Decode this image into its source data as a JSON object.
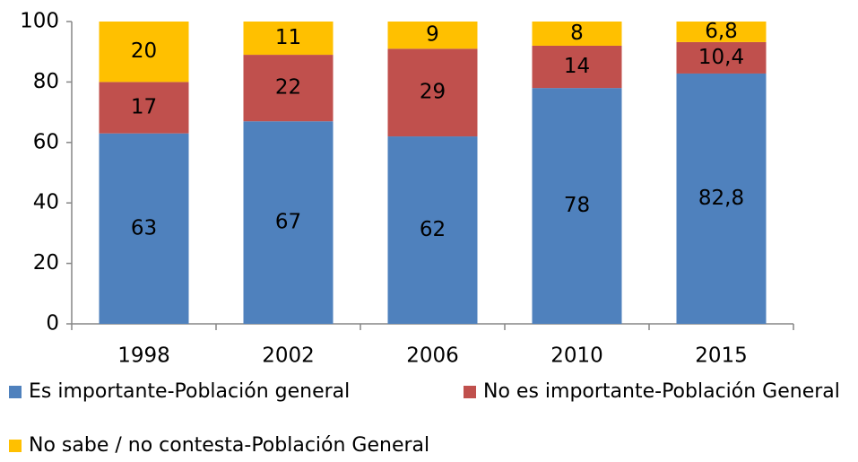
{
  "chart_data": {
    "type": "stacked_bar",
    "categories": [
      "1998",
      "2002",
      "2006",
      "2010",
      "2015"
    ],
    "series": [
      {
        "name": "Es importante-Población general",
        "color": "#4f81bd",
        "values": [
          63,
          67,
          62,
          78,
          82.8
        ],
        "value_labels": [
          "63",
          "67",
          "62",
          "78",
          "82,8"
        ]
      },
      {
        "name": "No es importante-Población General",
        "color": "#c0504d",
        "values": [
          17,
          22,
          29,
          14,
          10.4
        ],
        "value_labels": [
          "17",
          "22",
          "29",
          "14",
          "10,4"
        ]
      },
      {
        "name": "No sabe / no contesta-Población General",
        "color": "#ffc000",
        "values": [
          20,
          11,
          9,
          8,
          6.8
        ],
        "value_labels": [
          "20",
          "11",
          "9",
          "8",
          "6,8"
        ]
      }
    ],
    "ylim": [
      0,
      100
    ],
    "yticks": [
      0,
      20,
      40,
      60,
      80,
      100
    ],
    "grid": false
  }
}
